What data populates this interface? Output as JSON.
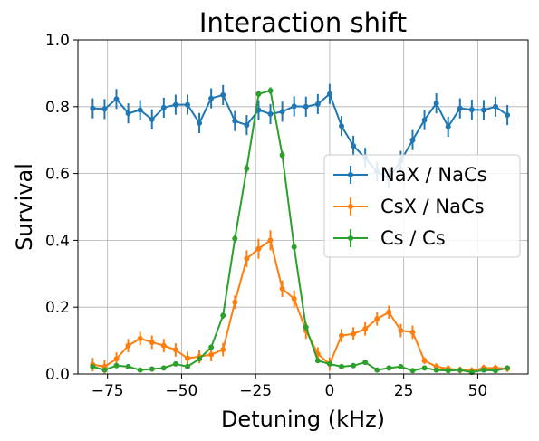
{
  "chart_data": {
    "type": "line",
    "title": "Interaction shift",
    "xlabel": "Detuning (kHz)",
    "ylabel": "Survival",
    "xlim": [
      -85,
      67
    ],
    "ylim": [
      0,
      1.0
    ],
    "xticks": [
      -75,
      -50,
      -25,
      0,
      25,
      50
    ],
    "xtick_labels": [
      "−75",
      "−50",
      "−25",
      "0",
      "25",
      "50"
    ],
    "yticks": [
      0,
      0.2,
      0.4,
      0.6,
      0.8,
      1.0
    ],
    "ytick_labels": [
      "0.0",
      "0.2",
      "0.4",
      "0.6",
      "0.8",
      "1.0"
    ],
    "grid": true,
    "legend_position": "center-right",
    "x": [
      -80,
      -76,
      -72,
      -68,
      -64,
      -60,
      -56,
      -52,
      -48,
      -44,
      -40,
      -36,
      -32,
      -28,
      -24,
      -20,
      -16,
      -12,
      -8,
      -4,
      0,
      4,
      8,
      12,
      16,
      20,
      24,
      28,
      32,
      36,
      40,
      44,
      48,
      52,
      56,
      60
    ],
    "series": [
      {
        "name": "NaX / NaCs",
        "color": "#1f77b4",
        "values": [
          0.795,
          0.793,
          0.823,
          0.78,
          0.79,
          0.762,
          0.797,
          0.806,
          0.806,
          0.751,
          0.825,
          0.835,
          0.757,
          0.745,
          0.79,
          0.778,
          0.785,
          0.801,
          0.8,
          0.808,
          0.838,
          0.742,
          0.683,
          0.647,
          0.605,
          0.585,
          0.638,
          0.7,
          0.76,
          0.81,
          0.74,
          0.795,
          0.791,
          0.79,
          0.8,
          0.775
        ],
        "errors": [
          0.03,
          0.03,
          0.03,
          0.03,
          0.03,
          0.03,
          0.03,
          0.03,
          0.03,
          0.03,
          0.03,
          0.03,
          0.03,
          0.03,
          0.03,
          0.03,
          0.03,
          0.03,
          0.03,
          0.03,
          0.03,
          0.03,
          0.03,
          0.03,
          0.03,
          0.03,
          0.03,
          0.03,
          0.03,
          0.03,
          0.03,
          0.03,
          0.03,
          0.03,
          0.03,
          0.03
        ]
      },
      {
        "name": "CsX / NaCs",
        "color": "#ff7f0e",
        "values": [
          0.028,
          0.022,
          0.045,
          0.085,
          0.106,
          0.095,
          0.085,
          0.072,
          0.047,
          0.052,
          0.058,
          0.073,
          0.215,
          0.345,
          0.375,
          0.4,
          0.255,
          0.225,
          0.13,
          0.06,
          0.03,
          0.115,
          0.12,
          0.135,
          0.165,
          0.185,
          0.13,
          0.125,
          0.04,
          0.022,
          0.016,
          0.012,
          0.01,
          0.018,
          0.018,
          0.016
        ],
        "errors": [
          0.02,
          0.02,
          0.02,
          0.02,
          0.02,
          0.02,
          0.02,
          0.02,
          0.02,
          0.02,
          0.02,
          0.02,
          0.02,
          0.025,
          0.03,
          0.03,
          0.025,
          0.025,
          0.025,
          0.02,
          0.02,
          0.02,
          0.02,
          0.02,
          0.02,
          0.02,
          0.02,
          0.02,
          0.01,
          0.01,
          0.01,
          0.01,
          0.01,
          0.01,
          0.01,
          0.01
        ]
      },
      {
        "name": "Cs / Cs",
        "color": "#2ca02c",
        "values": [
          0.022,
          0.012,
          0.025,
          0.022,
          0.012,
          0.015,
          0.018,
          0.03,
          0.022,
          0.045,
          0.08,
          0.175,
          0.405,
          0.615,
          0.838,
          0.848,
          0.655,
          0.38,
          0.14,
          0.04,
          0.03,
          0.022,
          0.025,
          0.035,
          0.012,
          0.018,
          0.022,
          0.01,
          0.018,
          0.012,
          0.01,
          0.012,
          0.005,
          0.012,
          0.01,
          0.018
        ],
        "errors": [
          0.005,
          0.005,
          0.005,
          0.005,
          0.005,
          0.005,
          0.005,
          0.005,
          0.005,
          0.005,
          0.008,
          0.01,
          0.012,
          0.012,
          0.01,
          0.01,
          0.012,
          0.012,
          0.01,
          0.005,
          0.005,
          0.005,
          0.005,
          0.005,
          0.005,
          0.005,
          0.005,
          0.005,
          0.005,
          0.005,
          0.005,
          0.005,
          0.005,
          0.005,
          0.005,
          0.005
        ]
      }
    ]
  }
}
